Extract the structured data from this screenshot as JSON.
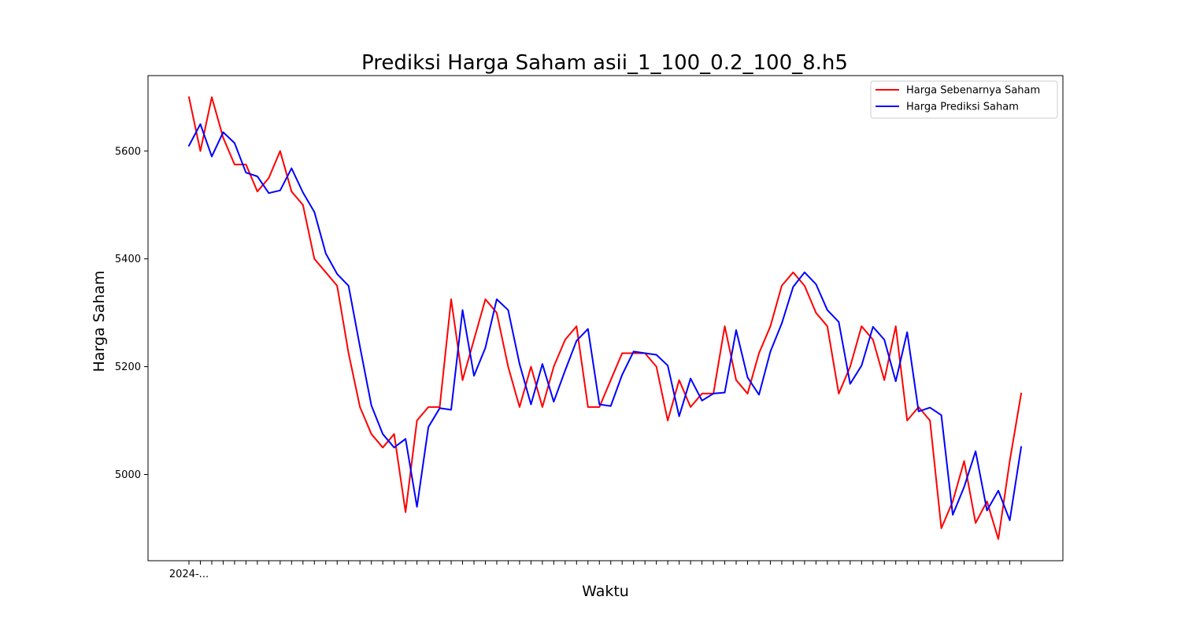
{
  "chart_data": {
    "type": "line",
    "title": "Prediksi Harga Saham asii_1_100_0.2_100_8.h5",
    "xlabel": "Waktu",
    "ylabel": "Harga Saham",
    "ylim": [
      4840,
      5740
    ],
    "yticks": [
      5000,
      5200,
      5400,
      5600
    ],
    "x_tick_labels": [
      "2024-..."
    ],
    "legend_position": "top-right",
    "grid": false,
    "series": [
      {
        "name": "Harga Sebenarnya Saham",
        "color": "#ff0000",
        "values": [
          5700,
          5600,
          5700,
          5625,
          5575,
          5575,
          5525,
          5550,
          5600,
          5525,
          5500,
          5400,
          5375,
          5350,
          5225,
          5125,
          5075,
          5050,
          5075,
          4930,
          5100,
          5125,
          5125,
          5325,
          5175,
          5250,
          5325,
          5300,
          5200,
          5125,
          5200,
          5125,
          5200,
          5250,
          5275,
          5125,
          5125,
          5175,
          5225,
          5225,
          5225,
          5200,
          5100,
          5175,
          5125,
          5150,
          5150,
          5275,
          5175,
          5150,
          5225,
          5275,
          5350,
          5375,
          5350,
          5300,
          5275,
          5150,
          5200,
          5275,
          5250,
          5175,
          5275,
          5100,
          5125,
          5100,
          4900,
          4950,
          5025,
          4910,
          4950,
          4880,
          5025,
          5150
        ]
      },
      {
        "name": "Harga Prediksi Saham",
        "color": "#0000ff",
        "values": [
          5610,
          5650,
          5590,
          5635,
          5615,
          5560,
          5553,
          5522,
          5527,
          5568,
          5523,
          5487,
          5410,
          5372,
          5350,
          5237,
          5128,
          5075,
          5050,
          5066,
          4940,
          5088,
          5123,
          5120,
          5305,
          5183,
          5235,
          5325,
          5305,
          5205,
          5130,
          5205,
          5135,
          5193,
          5248,
          5270,
          5130,
          5127,
          5185,
          5228,
          5225,
          5222,
          5202,
          5108,
          5178,
          5137,
          5150,
          5152,
          5268,
          5180,
          5148,
          5228,
          5280,
          5348,
          5375,
          5353,
          5305,
          5283,
          5168,
          5202,
          5274,
          5250,
          5173,
          5264,
          5117,
          5124,
          5110,
          4925,
          4977,
          5043,
          4933,
          4970,
          4915,
          5051
        ]
      }
    ]
  }
}
